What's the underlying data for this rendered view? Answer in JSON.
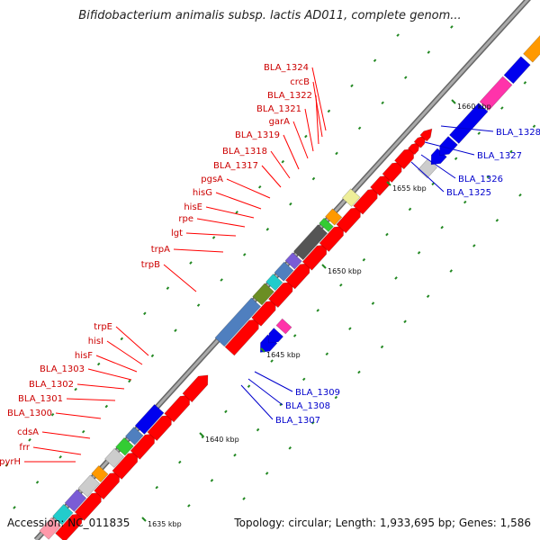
{
  "header": {
    "title": "Bifidobacterium animalis subsp. lactis AD011, complete genom..."
  },
  "footer": {
    "accession": "Accession: NC_011835",
    "summary": "Topology: circular; Length: 1,933,695 bp; Genes: 1,586"
  },
  "scale": {
    "ticks": [
      {
        "label": "1635 kbp"
      },
      {
        "label": "1640 kbp"
      },
      {
        "label": "1645 kbp"
      },
      {
        "label": "1650 kbp"
      },
      {
        "label": "1655 kbp"
      },
      {
        "label": "1660 kbp"
      }
    ]
  },
  "colors": {
    "red": "#ff0000",
    "blue": "#0000ee",
    "steelblue": "#4f7fbf",
    "cyan": "#22cccc",
    "olive": "#6b8e23",
    "gray": "#888888",
    "darkgray": "#555555",
    "green": "#33cc33",
    "orange": "#ff9900",
    "khaki": "#eeee99",
    "purple": "#7a5cd6",
    "pink": "#ff33aa",
    "lightgray": "#cccccc",
    "lightpink": "#ff99aa",
    "tick_green": "#228822"
  },
  "genes_red": [
    "BLA_1324",
    "crcB",
    "BLA_1322",
    "BLA_1321",
    "garA",
    "BLA_1319",
    "BLA_1318",
    "BLA_1317",
    "pgsA",
    "hisG",
    "hisE",
    "rpe",
    "lgt",
    "trpA",
    "trpB",
    "trpE",
    "hisI",
    "hisF",
    "BLA_1303",
    "BLA_1302",
    "BLA_1301",
    "BLA_1300",
    "cdsA",
    "frr",
    "pyrH"
  ],
  "genes_blue": [
    "BLA_1328",
    "BLA_1327",
    "BLA_1326",
    "BLA_1325",
    "BLA_1309",
    "BLA_1308",
    "BLA_1307"
  ]
}
